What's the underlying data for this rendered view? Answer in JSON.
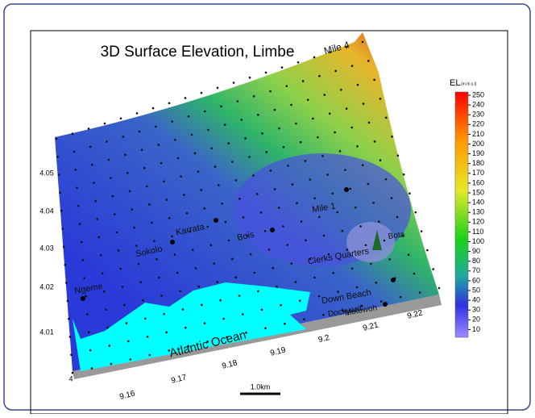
{
  "title": "3D Surface Elevation, Limbe",
  "legend": {
    "title": "EL",
    "unit": "(m.m.s.l)",
    "ticks": [
      250,
      240,
      230,
      220,
      210,
      200,
      190,
      180,
      170,
      160,
      150,
      140,
      130,
      120,
      110,
      100,
      90,
      80,
      70,
      60,
      50,
      40,
      30,
      20,
      10
    ]
  },
  "latitude_labels": [
    "4.05",
    "4.04",
    "4.03",
    "4.02",
    "4.01",
    "4"
  ],
  "longitude_labels": [
    "9.16",
    "9.17",
    "9.18",
    "9.19",
    "9.2",
    "9.21",
    "9.22"
  ],
  "places": [
    "Mile 4",
    "Mile 1",
    "Karrata",
    "Sokolo",
    "Bois",
    "Bota",
    "Ngeme",
    "Clerks Quarters",
    "Down Beach",
    "Motowoh",
    "Dockyard",
    "Atlantic Ocean"
  ],
  "scale_bar": "1.0km"
}
